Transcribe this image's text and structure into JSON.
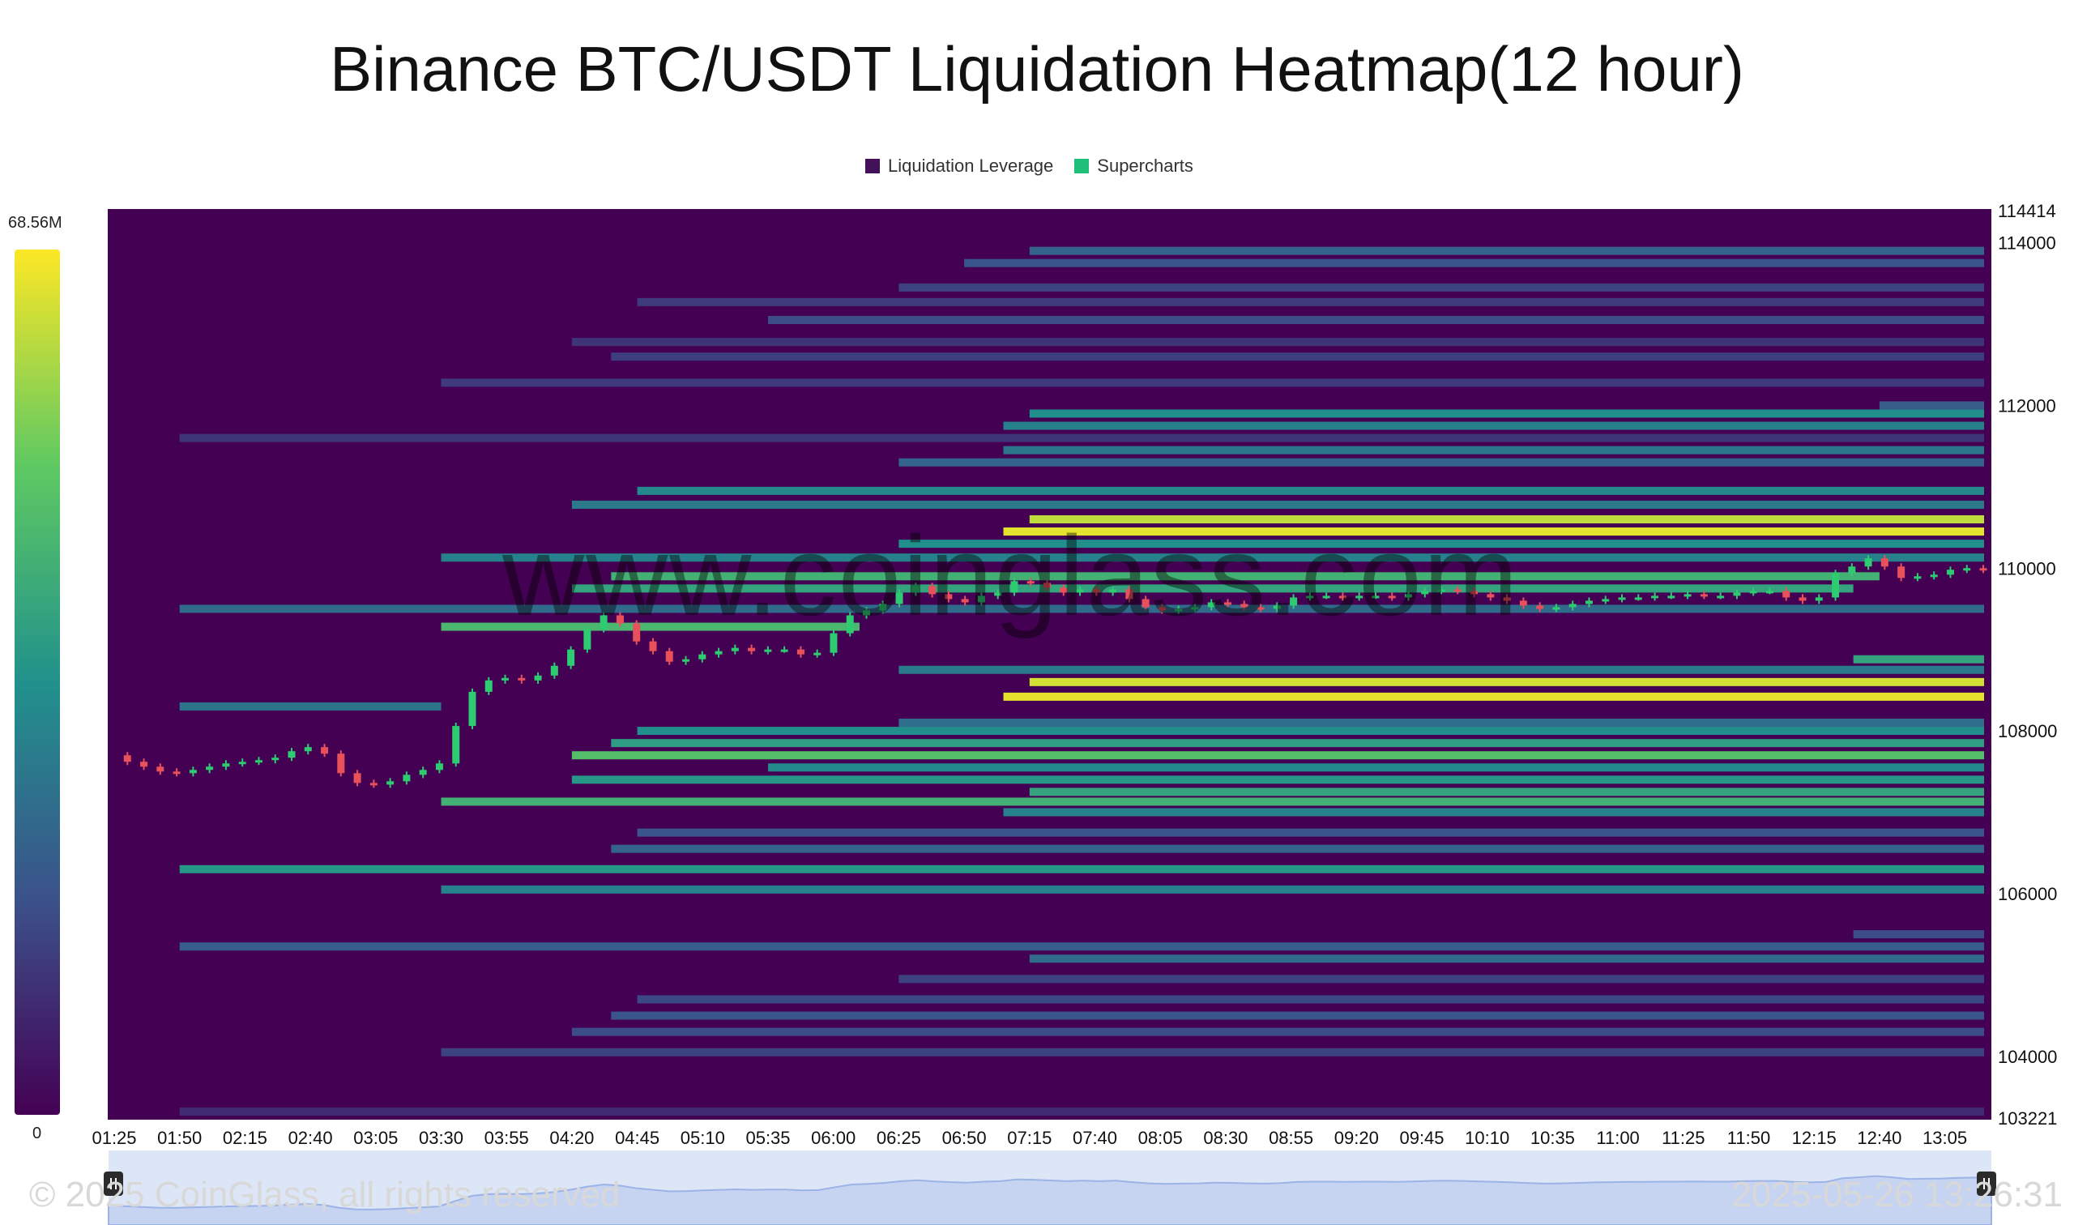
{
  "chart_data": {
    "type": "heatmap",
    "title": "Binance BTC/USDT Liquidation Heatmap(12 hour)",
    "legend": [
      {
        "name": "Liquidation Leverage",
        "color": "#43105a"
      },
      {
        "name": "Supercharts",
        "color": "#1fbf7a"
      }
    ],
    "color_scale": {
      "min": 0,
      "max": 68.56,
      "min_label": "0",
      "max_label": "68.56M",
      "unit": "M",
      "colors": [
        "#440154",
        "#3b528b",
        "#21918c",
        "#5ec962",
        "#fde725"
      ]
    },
    "y_axis": {
      "range": [
        103221,
        114414
      ],
      "ticks": [
        "114414",
        "114000",
        "112000",
        "110000",
        "108000",
        "106000",
        "104000",
        "103221"
      ]
    },
    "x_axis": {
      "ticks": [
        "01:25",
        "01:50",
        "02:15",
        "02:40",
        "03:05",
        "03:30",
        "03:55",
        "04:20",
        "04:45",
        "05:10",
        "05:35",
        "06:00",
        "06:25",
        "06:50",
        "07:15",
        "07:40",
        "08:05",
        "08:30",
        "08:55",
        "09:20",
        "09:45",
        "10:10",
        "10:35",
        "11:00",
        "11:25",
        "11:50",
        "12:15",
        "12:40",
        "13:05"
      ]
    },
    "background_level": 0,
    "bands": [
      {
        "price": 113900,
        "start": "07:15",
        "end": "13:20",
        "value": 22
      },
      {
        "price": 113750,
        "start": "06:50",
        "end": "13:20",
        "value": 18
      },
      {
        "price": 113450,
        "start": "06:25",
        "end": "13:20",
        "value": 14
      },
      {
        "price": 113270,
        "start": "04:45",
        "end": "13:20",
        "value": 12
      },
      {
        "price": 113050,
        "start": "05:35",
        "end": "13:20",
        "value": 16
      },
      {
        "price": 112780,
        "start": "04:20",
        "end": "13:20",
        "value": 11
      },
      {
        "price": 112600,
        "start": "04:35",
        "end": "13:20",
        "value": 13
      },
      {
        "price": 112280,
        "start": "03:30",
        "end": "13:20",
        "value": 12
      },
      {
        "price": 112000,
        "start": "12:40",
        "end": "13:20",
        "value": 20
      },
      {
        "price": 111900,
        "start": "07:15",
        "end": "13:20",
        "value": 34
      },
      {
        "price": 111750,
        "start": "07:05",
        "end": "13:20",
        "value": 30
      },
      {
        "price": 111600,
        "start": "01:50",
        "end": "13:20",
        "value": 11
      },
      {
        "price": 111450,
        "start": "07:05",
        "end": "13:20",
        "value": 27
      },
      {
        "price": 111300,
        "start": "06:25",
        "end": "13:20",
        "value": 22
      },
      {
        "price": 110950,
        "start": "04:45",
        "end": "13:20",
        "value": 32
      },
      {
        "price": 110780,
        "start": "04:20",
        "end": "13:20",
        "value": 28
      },
      {
        "price": 110600,
        "start": "07:15",
        "end": "13:20",
        "value": 62
      },
      {
        "price": 110450,
        "start": "07:05",
        "end": "13:20",
        "value": 66
      },
      {
        "price": 110300,
        "start": "06:25",
        "end": "13:20",
        "value": 34
      },
      {
        "price": 110130,
        "start": "03:30",
        "end": "13:20",
        "value": 30
      },
      {
        "price": 109900,
        "start": "04:35",
        "end": "12:40",
        "value": 44
      },
      {
        "price": 109750,
        "start": "04:20",
        "end": "12:30",
        "value": 40
      },
      {
        "price": 109500,
        "start": "01:50",
        "end": "13:20",
        "value": 24
      },
      {
        "price": 109280,
        "start": "03:30",
        "end": "06:10",
        "value": 46
      },
      {
        "price": 108880,
        "start": "12:30",
        "end": "13:20",
        "value": 40
      },
      {
        "price": 108750,
        "start": "06:25",
        "end": "13:20",
        "value": 28
      },
      {
        "price": 108600,
        "start": "07:15",
        "end": "13:20",
        "value": 64
      },
      {
        "price": 108420,
        "start": "07:05",
        "end": "13:20",
        "value": 66
      },
      {
        "price": 108300,
        "start": "01:50",
        "end": "03:30",
        "value": 26
      },
      {
        "price": 108100,
        "start": "06:25",
        "end": "13:20",
        "value": 25
      },
      {
        "price": 108000,
        "start": "04:45",
        "end": "13:20",
        "value": 34
      },
      {
        "price": 107850,
        "start": "04:35",
        "end": "13:20",
        "value": 38
      },
      {
        "price": 107700,
        "start": "04:20",
        "end": "13:20",
        "value": 48
      },
      {
        "price": 107550,
        "start": "05:35",
        "end": "13:20",
        "value": 32
      },
      {
        "price": 107400,
        "start": "04:20",
        "end": "13:20",
        "value": 36
      },
      {
        "price": 107250,
        "start": "07:15",
        "end": "13:20",
        "value": 40
      },
      {
        "price": 107130,
        "start": "03:30",
        "end": "13:20",
        "value": 44
      },
      {
        "price": 107000,
        "start": "07:05",
        "end": "13:20",
        "value": 30
      },
      {
        "price": 106750,
        "start": "04:45",
        "end": "13:20",
        "value": 18
      },
      {
        "price": 106550,
        "start": "04:35",
        "end": "13:20",
        "value": 22
      },
      {
        "price": 106300,
        "start": "01:50",
        "end": "13:20",
        "value": 36
      },
      {
        "price": 106050,
        "start": "03:30",
        "end": "13:20",
        "value": 30
      },
      {
        "price": 105500,
        "start": "12:30",
        "end": "13:20",
        "value": 16
      },
      {
        "price": 105350,
        "start": "01:50",
        "end": "13:20",
        "value": 20
      },
      {
        "price": 105200,
        "start": "07:15",
        "end": "13:20",
        "value": 24
      },
      {
        "price": 104950,
        "start": "06:25",
        "end": "13:20",
        "value": 14
      },
      {
        "price": 104700,
        "start": "04:45",
        "end": "13:20",
        "value": 15
      },
      {
        "price": 104500,
        "start": "04:35",
        "end": "13:20",
        "value": 18
      },
      {
        "price": 104300,
        "start": "04:20",
        "end": "13:20",
        "value": 16
      },
      {
        "price": 104050,
        "start": "03:30",
        "end": "13:20",
        "value": 14
      },
      {
        "price": 103320,
        "start": "01:50",
        "end": "13:20",
        "value": 9
      }
    ],
    "price_series": [
      107700,
      107620,
      107560,
      107500,
      107480,
      107520,
      107560,
      107600,
      107620,
      107640,
      107670,
      107750,
      107800,
      107720,
      107480,
      107360,
      107340,
      107380,
      107460,
      107520,
      107600,
      108060,
      108480,
      108620,
      108650,
      108620,
      108680,
      108800,
      109000,
      109250,
      109420,
      109320,
      109100,
      108980,
      108850,
      108880,
      108940,
      108980,
      109020,
      108980,
      109000,
      109000,
      108940,
      108960,
      109200,
      109420,
      109480,
      109560,
      109700,
      109780,
      109680,
      109620,
      109580,
      109660,
      109700,
      109840,
      109820,
      109760,
      109700,
      109740,
      109700,
      109740,
      109620,
      109520,
      109480,
      109500,
      109520,
      109580,
      109560,
      109520,
      109500,
      109540,
      109640,
      109660,
      109660,
      109640,
      109660,
      109660,
      109640,
      109680,
      109720,
      109740,
      109720,
      109680,
      109640,
      109600,
      109540,
      109500,
      109520,
      109560,
      109600,
      109620,
      109640,
      109640,
      109660,
      109660,
      109680,
      109660,
      109660,
      109700,
      109720,
      109720,
      109640,
      109600,
      109640,
      109940,
      110020,
      110120,
      110020,
      109880,
      109900,
      109920,
      109980,
      110000,
      109980
    ]
  },
  "watermark": "www.coinglass.com",
  "footer": {
    "copyright": "© 2025 CoinGlass, all rights reserved",
    "timestamp": "2025-05-26 13:26:31"
  }
}
